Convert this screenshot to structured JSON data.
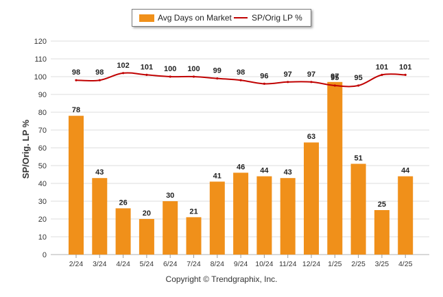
{
  "legend": {
    "bar_label": "Avg Days on Market",
    "line_label": "SP/Orig LP %"
  },
  "copyright": "Copyright © Trendgraphix, Inc.",
  "colors": {
    "bar": "#f0901a",
    "line": "#c00000",
    "grid": "#dcdcdc",
    "axis_text": "#333333"
  },
  "chart_data": {
    "type": "bar",
    "categories": [
      "2/24",
      "3/24",
      "4/24",
      "5/24",
      "6/24",
      "7/24",
      "8/24",
      "9/24",
      "10/24",
      "11/24",
      "12/24",
      "1/25",
      "2/25",
      "3/25",
      "4/25"
    ],
    "series": [
      {
        "name": "Avg Days on Market",
        "type": "bar",
        "values": [
          78,
          43,
          26,
          20,
          30,
          21,
          41,
          46,
          44,
          43,
          63,
          97,
          51,
          25,
          44
        ]
      },
      {
        "name": "SP/Orig LP %",
        "type": "line",
        "values": [
          98,
          98,
          102,
          101,
          100,
          100,
          99,
          98,
          96,
          97,
          97,
          95,
          95,
          101,
          101
        ]
      }
    ],
    "ylabel": "SP/Orig. LP %",
    "xlabel": "",
    "ylim": [
      0,
      120
    ],
    "yticks": [
      0,
      10,
      20,
      30,
      40,
      50,
      60,
      70,
      80,
      90,
      100,
      110,
      120
    ],
    "grid": true,
    "legend_position": "top-center"
  }
}
